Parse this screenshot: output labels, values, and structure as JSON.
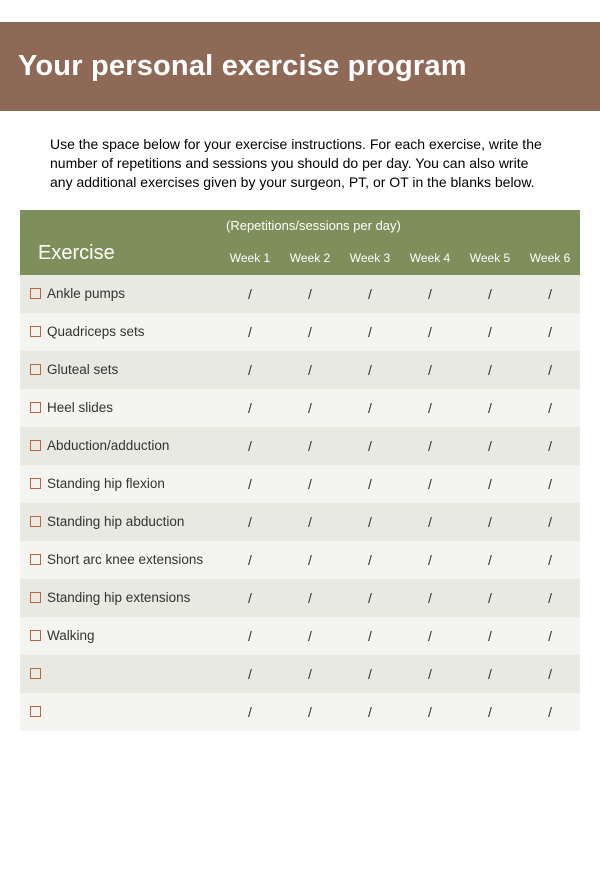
{
  "colors": {
    "header_bg": "#8e6a56",
    "header_text": "#ffffff",
    "table_header_bg": "#7e8f5b",
    "table_header_text": "#ffffff",
    "row_odd": "#e8e9e3",
    "row_even": "#f4f4f0",
    "checkbox_border": "#c1623c",
    "body_text": "#000000"
  },
  "header": {
    "title": "Your personal exercise program"
  },
  "intro": {
    "text": "Use the space below for your exercise instructions. For each exercise, write the number of repetitions and sessions you should do per day. You can also write any additional exercises given by your surgeon, PT, or OT in the blanks below."
  },
  "table": {
    "exercise_header": "Exercise",
    "super_header": "(Repetitions/sessions per day)",
    "week_labels": [
      "Week 1",
      "Week 2",
      "Week 3",
      "Week 4",
      "Week 5",
      "Week 6"
    ],
    "placeholder": "/",
    "rows": [
      {
        "label": "Ankle pumps"
      },
      {
        "label": "Quadriceps sets"
      },
      {
        "label": "Gluteal sets"
      },
      {
        "label": "Heel slides"
      },
      {
        "label": "Abduction/adduction"
      },
      {
        "label": "Standing hip flexion"
      },
      {
        "label": "Standing hip abduction"
      },
      {
        "label": "Short arc knee extensions"
      },
      {
        "label": "Standing hip extensions"
      },
      {
        "label": "Walking"
      },
      {
        "label": ""
      },
      {
        "label": ""
      }
    ]
  }
}
